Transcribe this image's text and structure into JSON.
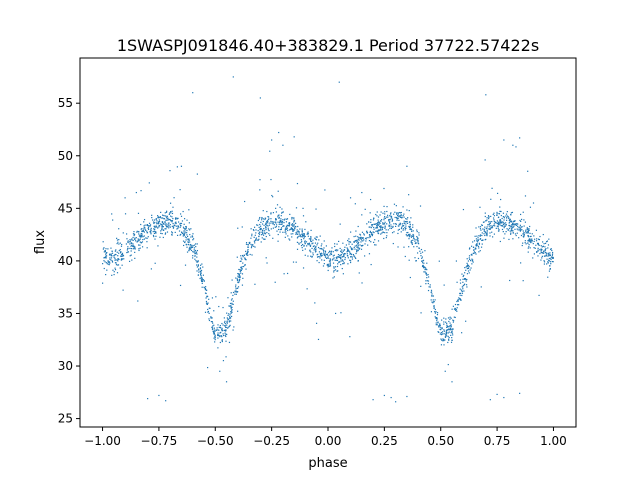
{
  "chart_data": {
    "type": "scatter",
    "title": "1SWASPJ091846.40+383829.1 Period 37722.57422s",
    "xlabel": "phase",
    "ylabel": "flux",
    "xlim": [
      -1.1,
      1.1
    ],
    "ylim": [
      24.2,
      59.3
    ],
    "x_ticks": [
      -1.0,
      -0.75,
      -0.5,
      -0.25,
      0.0,
      0.25,
      0.5,
      0.75,
      1.0
    ],
    "x_tick_labels": [
      "−1.00",
      "−0.75",
      "−0.50",
      "−0.25",
      "0.00",
      "0.25",
      "0.50",
      "0.75",
      "1.00"
    ],
    "y_ticks": [
      25,
      30,
      35,
      40,
      45,
      50,
      55
    ],
    "y_tick_labels": [
      "25",
      "30",
      "35",
      "40",
      "45",
      "50",
      "55"
    ],
    "grid": false,
    "point_color": "#1f77b4",
    "series": [
      {
        "phase_curve": {
          "phase": [
            0.0,
            0.05,
            0.1,
            0.15,
            0.2,
            0.25,
            0.3,
            0.35,
            0.4,
            0.45,
            0.5,
            0.55,
            0.6,
            0.65,
            0.7,
            0.75,
            0.8,
            0.85,
            0.9,
            0.95,
            1.0
          ],
          "flux": [
            40.2,
            40.3,
            41.0,
            42.0,
            42.9,
            43.5,
            43.8,
            43.3,
            41.5,
            37.5,
            33.0,
            33.5,
            38.0,
            41.5,
            43.0,
            43.8,
            43.6,
            43.0,
            42.0,
            41.0,
            40.2
          ]
        },
        "scatter_sigma": 0.6,
        "outliers": [
          {
            "x": 0.2,
            "y": 26.8
          },
          {
            "x": 0.25,
            "y": 27.2
          },
          {
            "x": 0.28,
            "y": 27.0
          },
          {
            "x": 0.3,
            "y": 26.6
          },
          {
            "x": 0.35,
            "y": 27.1
          },
          {
            "x": 0.72,
            "y": 26.8
          },
          {
            "x": 0.75,
            "y": 27.3
          },
          {
            "x": 0.78,
            "y": 27.0
          },
          {
            "x": 0.85,
            "y": 27.4
          },
          {
            "x": -0.8,
            "y": 26.9
          },
          {
            "x": -0.75,
            "y": 27.2
          },
          {
            "x": -0.72,
            "y": 26.7
          },
          {
            "x": -0.25,
            "y": 51.5
          },
          {
            "x": -0.2,
            "y": 51.0
          },
          {
            "x": -0.15,
            "y": 51.8
          },
          {
            "x": 0.78,
            "y": 51.5
          },
          {
            "x": 0.82,
            "y": 51.0
          },
          {
            "x": 0.85,
            "y": 51.7
          },
          {
            "x": -0.45,
            "y": 28.5
          },
          {
            "x": 0.55,
            "y": 28.5
          },
          {
            "x": -0.48,
            "y": 29.5
          },
          {
            "x": 0.52,
            "y": 29.5
          },
          {
            "x": -0.3,
            "y": 55.5
          },
          {
            "x": 0.7,
            "y": 55.8
          },
          {
            "x": -0.42,
            "y": 57.5
          },
          {
            "x": 0.05,
            "y": 57.0
          },
          {
            "x": -0.6,
            "y": 56.0
          },
          {
            "x": 0.35,
            "y": 49.0
          },
          {
            "x": -0.65,
            "y": 49.0
          },
          {
            "x": 0.15,
            "y": 46.5
          },
          {
            "x": -0.85,
            "y": 46.5
          },
          {
            "x": -0.9,
            "y": 46.0
          },
          {
            "x": 0.1,
            "y": 46.0
          }
        ]
      }
    ]
  }
}
